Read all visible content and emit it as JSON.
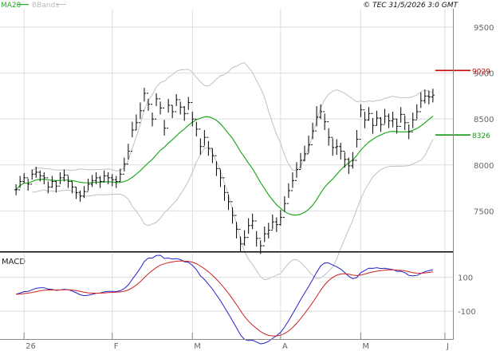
{
  "header": {
    "ma_label": "MA20",
    "bb_label": "BBands",
    "source_label": "© TEC 31/5/2026 3:0 GMT"
  },
  "macd_panel": {
    "title": "MACD"
  },
  "colors": {
    "ma": "#22aa22",
    "bands": "#c0c0c0",
    "price": "#000000",
    "macd": "#2222cc",
    "signal": "#cc2222",
    "resistance": "#cc0000",
    "support": "#119911",
    "grid": "#dddddd"
  },
  "chart_data": {
    "type": "ohlc",
    "title": "",
    "x_ticks": [
      {
        "label": "26",
        "day": 2
      },
      {
        "label": "F",
        "day": 24
      },
      {
        "label": "M",
        "day": 44
      },
      {
        "label": "A",
        "day": 66
      },
      {
        "label": "M",
        "day": 86
      },
      {
        "label": "J",
        "day": 107
      }
    ],
    "y_ticks": [
      9500,
      9000,
      8500,
      8000,
      7500
    ],
    "ylim": [
      7060,
      9700
    ],
    "xlim": [
      -4,
      109
    ],
    "closes": [
      7730,
      7820,
      7860,
      7790,
      7900,
      7920,
      7880,
      7860,
      7760,
      7820,
      7770,
      7860,
      7890,
      7820,
      7760,
      7700,
      7660,
      7710,
      7790,
      7830,
      7860,
      7820,
      7880,
      7860,
      7840,
      7820,
      7900,
      8010,
      8150,
      8380,
      8460,
      8590,
      8780,
      8660,
      8500,
      8720,
      8620,
      8400,
      8650,
      8580,
      8710,
      8630,
      8560,
      8680,
      8500,
      8390,
      8200,
      8300,
      8180,
      8100,
      7960,
      7860,
      7700,
      7600,
      7450,
      7300,
      7140,
      7210,
      7340,
      7390,
      7200,
      7120,
      7250,
      7290,
      7380,
      7350,
      7430,
      7580,
      7720,
      7830,
      7950,
      8050,
      8120,
      8220,
      8370,
      8520,
      8580,
      8470,
      8300,
      8190,
      8200,
      8150,
      8060,
      7990,
      8050,
      8280,
      8600,
      8490,
      8560,
      8430,
      8510,
      8440,
      8530,
      8480,
      8500,
      8420,
      8550,
      8460,
      8360,
      8490,
      8580,
      8700,
      8750,
      8740,
      8760
    ],
    "highs": [
      7790,
      7880,
      7910,
      7850,
      7950,
      7980,
      7940,
      7920,
      7820,
      7880,
      7830,
      7920,
      7950,
      7880,
      7820,
      7760,
      7720,
      7770,
      7850,
      7890,
      7920,
      7880,
      7940,
      7920,
      7900,
      7880,
      7960,
      8080,
      8230,
      8470,
      8550,
      8680,
      8840,
      8720,
      8570,
      8780,
      8690,
      8490,
      8720,
      8650,
      8770,
      8690,
      8640,
      8740,
      8580,
      8470,
      8290,
      8380,
      8260,
      8180,
      8040,
      7950,
      7780,
      7680,
      7540,
      7380,
      7220,
      7290,
      7420,
      7470,
      7280,
      7180,
      7330,
      7370,
      7460,
      7430,
      7510,
      7660,
      7800,
      7920,
      8030,
      8130,
      8210,
      8320,
      8460,
      8640,
      8660,
      8560,
      8400,
      8290,
      8280,
      8240,
      8140,
      8080,
      8140,
      8380,
      8660,
      8580,
      8630,
      8510,
      8590,
      8520,
      8610,
      8560,
      8580,
      8500,
      8630,
      8540,
      8440,
      8570,
      8660,
      8790,
      8820,
      8810,
      8830
    ],
    "lows": [
      7670,
      7750,
      7800,
      7720,
      7840,
      7860,
      7820,
      7790,
      7690,
      7750,
      7700,
      7790,
      7820,
      7750,
      7690,
      7630,
      7600,
      7640,
      7720,
      7760,
      7790,
      7750,
      7810,
      7790,
      7770,
      7750,
      7820,
      7930,
      8060,
      8300,
      8380,
      8500,
      8690,
      8590,
      8420,
      8640,
      8550,
      8320,
      8570,
      8510,
      8640,
      8550,
      8480,
      8600,
      8420,
      8310,
      8110,
      8210,
      8100,
      8020,
      7880,
      7760,
      7610,
      7510,
      7360,
      7200,
      7060,
      7120,
      7250,
      7300,
      7110,
      7030,
      7160,
      7200,
      7300,
      7270,
      7340,
      7490,
      7640,
      7750,
      7860,
      7960,
      8040,
      8130,
      8280,
      8420,
      8500,
      8380,
      8210,
      8100,
      8110,
      8060,
      7970,
      7900,
      7960,
      8190,
      8520,
      8400,
      8480,
      8340,
      8430,
      8360,
      8450,
      8400,
      8410,
      8340,
      8460,
      8380,
      8280,
      8400,
      8500,
      8620,
      8670,
      8660,
      8680
    ],
    "levels": [
      {
        "label": "9029",
        "value": 9029,
        "kind": "resistance"
      },
      {
        "label": "8326",
        "value": 8326,
        "kind": "support"
      }
    ],
    "macd_ylim": [
      -260,
      240
    ],
    "macd_ticks": [
      {
        "label": "100",
        "value": 100
      },
      {
        "label": "-100",
        "value": -100
      }
    ]
  }
}
